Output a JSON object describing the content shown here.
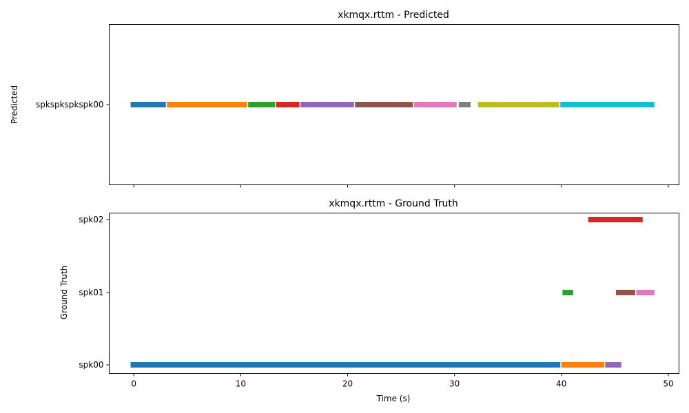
{
  "chart_data": [
    {
      "type": "timeline",
      "title": "xkmqx.rttm - Predicted",
      "ylabel": "Predicted",
      "xlabel": "",
      "xlim": [
        -2.3,
        51
      ],
      "x_ticks": [
        0,
        10,
        20,
        30,
        40,
        50
      ],
      "show_x_tick_labels": false,
      "grid": false,
      "rows": [
        "spkspkspkspk00"
      ],
      "segments": [
        {
          "row": "spkspkspkspk00",
          "start": -0.3,
          "end": 3.0,
          "color": "#1f77b4"
        },
        {
          "row": "spkspkspkspk00",
          "start": 3.1,
          "end": 10.6,
          "color": "#ff7f0e"
        },
        {
          "row": "spkspkspkspk00",
          "start": 10.7,
          "end": 13.2,
          "color": "#2ca02c"
        },
        {
          "row": "spkspkspkspk00",
          "start": 13.3,
          "end": 15.5,
          "color": "#d62728"
        },
        {
          "row": "spkspkspkspk00",
          "start": 15.6,
          "end": 20.6,
          "color": "#9467bd"
        },
        {
          "row": "spkspkspkspk00",
          "start": 20.7,
          "end": 26.1,
          "color": "#8c564b"
        },
        {
          "row": "spkspkspkspk00",
          "start": 26.2,
          "end": 30.2,
          "color": "#e377c2"
        },
        {
          "row": "spkspkspkspk00",
          "start": 30.4,
          "end": 31.5,
          "color": "#7f7f7f"
        },
        {
          "row": "spkspkspkspk00",
          "start": 32.2,
          "end": 39.8,
          "color": "#bcbd22"
        },
        {
          "row": "spkspkspkspk00",
          "start": 39.9,
          "end": 48.7,
          "color": "#17becf"
        }
      ]
    },
    {
      "type": "timeline",
      "title": "xkmqx.rttm - Ground Truth",
      "ylabel": "Ground Truth",
      "xlabel": "Time (s)",
      "xlim": [
        -2.3,
        51
      ],
      "x_ticks": [
        0,
        10,
        20,
        30,
        40,
        50
      ],
      "show_x_tick_labels": true,
      "grid": false,
      "rows": [
        "spk00",
        "spk01",
        "spk02"
      ],
      "segments": [
        {
          "row": "spk00",
          "start": -0.3,
          "end": 39.9,
          "color": "#1f77b4"
        },
        {
          "row": "spk00",
          "start": 40.0,
          "end": 44.0,
          "color": "#ff7f0e"
        },
        {
          "row": "spk01",
          "start": 40.1,
          "end": 41.1,
          "color": "#2ca02c"
        },
        {
          "row": "spk02",
          "start": 42.5,
          "end": 47.6,
          "color": "#d62728"
        },
        {
          "row": "spk00",
          "start": 44.1,
          "end": 45.6,
          "color": "#9467bd"
        },
        {
          "row": "spk01",
          "start": 45.1,
          "end": 46.9,
          "color": "#8c564b"
        },
        {
          "row": "spk01",
          "start": 47.0,
          "end": 48.7,
          "color": "#e377c2"
        }
      ]
    }
  ]
}
